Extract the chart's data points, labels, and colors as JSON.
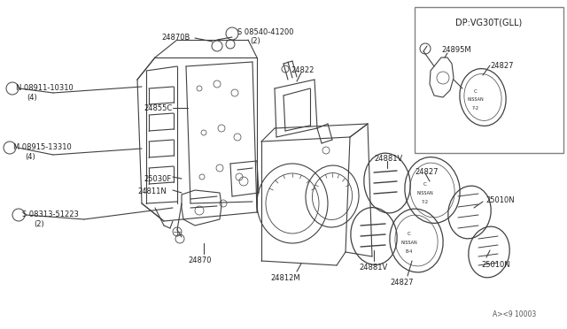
{
  "bg_color": "#ffffff",
  "line_color": "#404040",
  "text_color": "#202020",
  "part_number_code": "A><9 10003",
  "inset_label": "DP:VG30T(GLL)",
  "inset_parts": [
    "24895M",
    "24827"
  ],
  "fig_w": 6.4,
  "fig_h": 3.72,
  "dpi": 100
}
